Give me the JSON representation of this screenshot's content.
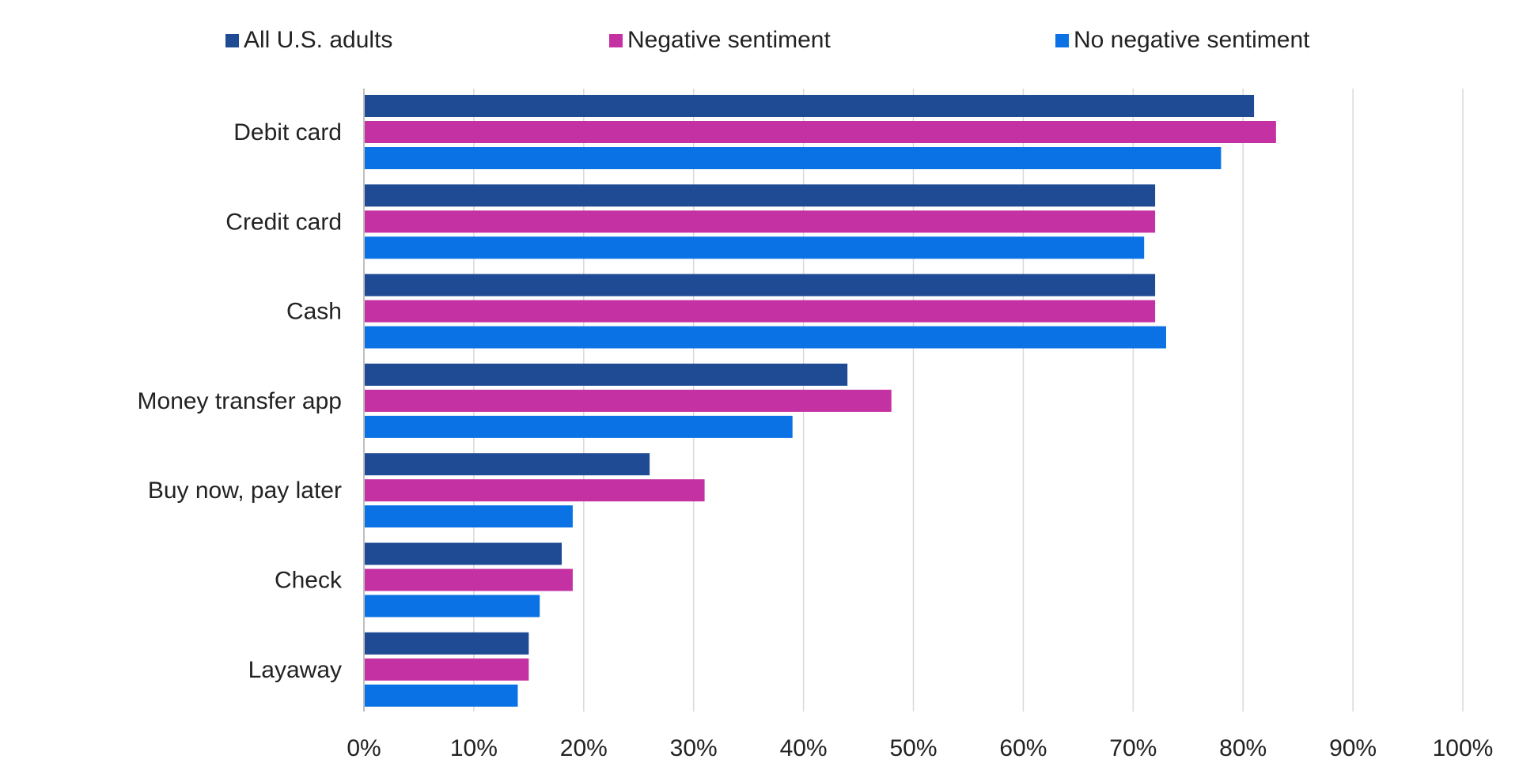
{
  "chart_data": {
    "type": "bar",
    "orientation": "horizontal",
    "categories": [
      "Debit card",
      "Credit card",
      "Cash",
      "Money transfer app",
      "Buy now, pay later",
      "Check",
      "Layaway"
    ],
    "series": [
      {
        "name": "All U.S. adults",
        "color": "#1f4a94",
        "values": [
          81,
          72,
          72,
          44,
          26,
          18,
          15
        ]
      },
      {
        "name": "Negative sentiment",
        "color": "#c431a3",
        "values": [
          83,
          72,
          72,
          48,
          31,
          19,
          15
        ]
      },
      {
        "name": "No negative sentiment",
        "color": "#0a72e5",
        "values": [
          78,
          71,
          73,
          39,
          19,
          16,
          14
        ]
      }
    ],
    "xlim": [
      0,
      100
    ],
    "xticks": [
      0,
      10,
      20,
      30,
      40,
      50,
      60,
      70,
      80,
      90,
      100
    ],
    "tick_labels": [
      "0%",
      "10%",
      "20%",
      "30%",
      "40%",
      "50%",
      "60%",
      "70%",
      "80%",
      "90%",
      "100%"
    ],
    "grid": true,
    "legend_position": "top"
  }
}
